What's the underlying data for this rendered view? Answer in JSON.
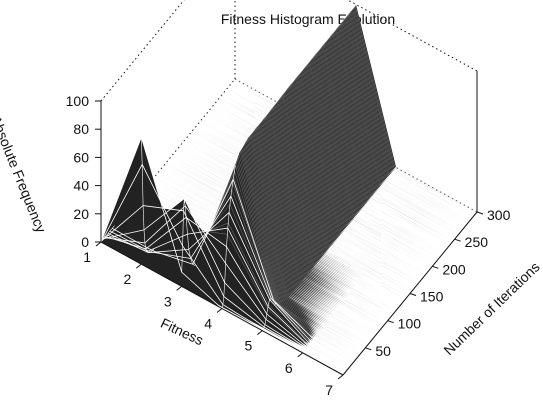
{
  "chart_data": {
    "type": "surface",
    "title": "Fitness Histogram Evolution",
    "xlabel": "Fitness",
    "ylabel": "Number of Iterations",
    "zlabel": "Absolute Frequency",
    "x_ticks": [
      1,
      2,
      3,
      4,
      5,
      6,
      7
    ],
    "y_ticks": [
      50,
      100,
      150,
      200,
      250,
      300
    ],
    "z_ticks": [
      0,
      20,
      40,
      60,
      80,
      100
    ],
    "xlim": [
      1,
      7
    ],
    "ylim": [
      0,
      300
    ],
    "zlim": [
      0,
      100
    ],
    "x": [
      1,
      2,
      3,
      4,
      5,
      6,
      7
    ],
    "iterations_sampled": [
      0,
      2,
      4,
      6,
      8,
      10,
      13,
      16,
      20,
      25,
      30,
      40,
      60,
      100,
      150,
      200,
      250,
      300
    ],
    "z": [
      [
        0,
        90,
        10,
        0,
        0,
        0,
        0
      ],
      [
        0,
        70,
        28,
        2,
        0,
        0,
        0
      ],
      [
        0,
        40,
        52,
        7,
        1,
        0,
        0
      ],
      [
        0,
        22,
        60,
        16,
        2,
        0,
        0
      ],
      [
        0,
        12,
        54,
        29,
        5,
        0,
        0
      ],
      [
        0,
        7,
        45,
        40,
        8,
        0,
        0
      ],
      [
        0,
        4,
        32,
        52,
        12,
        0,
        0
      ],
      [
        0,
        2,
        20,
        62,
        16,
        0,
        0
      ],
      [
        0,
        1,
        12,
        72,
        15,
        0,
        0
      ],
      [
        0,
        0,
        6,
        82,
        12,
        0,
        0
      ],
      [
        0,
        0,
        3,
        90,
        7,
        0,
        0
      ],
      [
        0,
        0,
        1,
        96,
        3,
        0,
        0
      ],
      [
        0,
        0,
        0,
        99,
        1,
        0,
        0
      ],
      [
        0,
        0,
        0,
        99,
        1,
        0,
        0
      ],
      [
        0,
        0,
        0,
        100,
        0,
        0,
        0
      ],
      [
        0,
        0,
        0,
        100,
        0,
        0,
        0
      ],
      [
        0,
        0,
        0,
        100,
        0,
        0,
        0
      ],
      [
        0,
        0,
        0,
        100,
        0,
        0,
        0
      ]
    ],
    "surface_color": "#222222",
    "grid": false
  }
}
